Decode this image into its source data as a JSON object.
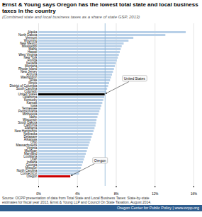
{
  "chart_data": {
    "type": "bar",
    "orientation": "horizontal",
    "title": "Ernst & Young says Oregon has the lowest total state and local business taxes in the country",
    "subtitle": "(Combined state and local business taxes as a share of state GSP, 2013)",
    "footer": "Source: OCPP presentation of data from Total State and Local Business Taxes: State-by-state\nestimates for fiscal year 2013, Ernst & Young LLP and Council On State Taxation, August 2014.",
    "credit": "Oregon Center for Public Policy  |  www.ocpp.org",
    "categories": [
      "Alaska",
      "North Dakota",
      "Vermont",
      "Wyoming",
      "New Mexico",
      "Mississippi",
      "Maine",
      "Hawaii",
      "West Virginia",
      "New York",
      "Florida",
      "Nevada",
      "Montana",
      "Rhode Island",
      "New Jersey",
      "Arizona",
      "Washington",
      "Texas",
      "Illinois",
      "District of Columbia",
      "South Carolina",
      "Colorado",
      "United States",
      "Oklahoma",
      "Kentucky",
      "Kansas",
      "Iowa",
      "Tennessee",
      "Pennsylvania",
      "Minnesota",
      "Idaho",
      "Wisconsin",
      "South Dakota",
      "California",
      "Alabama",
      "New Hampshire",
      "Nebraska",
      "Delaware",
      "Arkansas",
      "Ohio",
      "Massachusetts",
      "Virginia",
      "Michigan",
      "Maryland",
      "Louisiana",
      "Utah",
      "Indiana",
      "Georgia",
      "Missouri",
      "North Carolina",
      "Connecticut",
      "Oregon"
    ],
    "values": [
      15.2,
      13.1,
      9.8,
      9.3,
      8.8,
      8.6,
      8.5,
      8.4,
      8.3,
      8.2,
      8.1,
      8.0,
      7.9,
      7.8,
      7.7,
      7.6,
      7.5,
      7.4,
      7.3,
      7.2,
      7.1,
      7.0,
      6.85,
      6.8,
      6.7,
      6.6,
      6.5,
      6.4,
      6.3,
      6.2,
      6.1,
      6.0,
      5.95,
      5.9,
      5.8,
      5.7,
      5.6,
      5.5,
      5.4,
      5.3,
      5.2,
      5.1,
      5.0,
      4.9,
      4.8,
      4.7,
      4.6,
      4.5,
      4.4,
      4.3,
      4.2,
      3.3
    ],
    "colors": [
      "#b8d0e8",
      "#b8d0e8",
      "#b8d0e8",
      "#b8d0e8",
      "#b8d0e8",
      "#b8d0e8",
      "#b8d0e8",
      "#b8d0e8",
      "#b8d0e8",
      "#b8d0e8",
      "#b8d0e8",
      "#b8d0e8",
      "#b8d0e8",
      "#b8d0e8",
      "#b8d0e8",
      "#b8d0e8",
      "#b8d0e8",
      "#b8d0e8",
      "#b8d0e8",
      "#b8d0e8",
      "#b8d0e8",
      "#b8d0e8",
      "#000000",
      "#b8d0e8",
      "#b8d0e8",
      "#b8d0e8",
      "#b8d0e8",
      "#b8d0e8",
      "#b8d0e8",
      "#b8d0e8",
      "#b8d0e8",
      "#b8d0e8",
      "#b8d0e8",
      "#b8d0e8",
      "#b8d0e8",
      "#b8d0e8",
      "#b8d0e8",
      "#b8d0e8",
      "#b8d0e8",
      "#b8d0e8",
      "#b8d0e8",
      "#b8d0e8",
      "#b8d0e8",
      "#b8d0e8",
      "#b8d0e8",
      "#b8d0e8",
      "#b8d0e8",
      "#b8d0e8",
      "#b8d0e8",
      "#b8d0e8",
      "#b8d0e8",
      "#cc0000"
    ],
    "xlim": [
      0,
      16
    ],
    "xticks": [
      {
        "value": 0,
        "label": "0%"
      },
      {
        "value": 4,
        "label": "4%"
      },
      {
        "value": 8,
        "label": "8%"
      },
      {
        "value": 12,
        "label": "12%"
      },
      {
        "value": 16,
        "label": "16%"
      }
    ],
    "grid": true,
    "reference_line": {
      "value": 6.85,
      "color": "#8ab4d4"
    },
    "annotations": [
      {
        "text": "United States",
        "category": "United States"
      },
      {
        "text": "Oregon",
        "category": "Oregon"
      }
    ]
  }
}
